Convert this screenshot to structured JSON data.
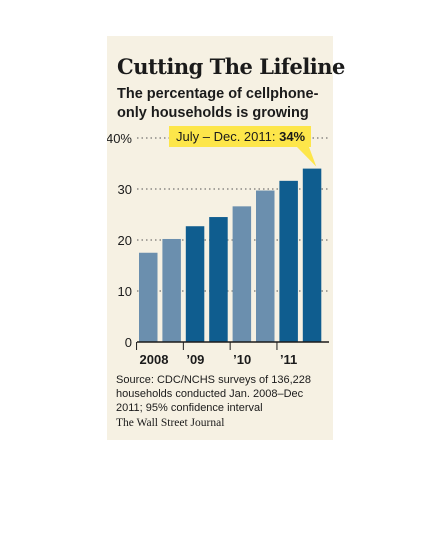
{
  "title": "Cutting The Lifeline",
  "subtitle": "The percentage of cellphone-only households is growing",
  "source": "Source: CDC/NCHS surveys of 136,228 households conducted Jan. 2008–Dec 2011; 95% confidence interval",
  "credit": "The Wall Street Journal",
  "colors": {
    "light_bar": "#6b8fae",
    "dark_bar": "#0f5d8f",
    "callout": "#fde64a",
    "background": "#f6f1e3"
  },
  "chart_data": {
    "type": "bar",
    "x": [
      "2008 H1",
      "2008 H2",
      "2009 H1",
      "2009 H2",
      "2010 H1",
      "2010 H2",
      "2011 H1",
      "2011 H2"
    ],
    "values": [
      17.5,
      20.2,
      22.7,
      24.5,
      26.6,
      29.7,
      31.6,
      34
    ],
    "bar_shade": [
      "light",
      "light",
      "dark",
      "dark",
      "light",
      "light",
      "dark",
      "dark"
    ],
    "category_labels": [
      "2008",
      "’09",
      "’10",
      "’11"
    ],
    "y_ticks": [
      {
        "value": 0,
        "label": "0"
      },
      {
        "value": 10,
        "label": "10"
      },
      {
        "value": 20,
        "label": "20"
      },
      {
        "value": 30,
        "label": "30"
      },
      {
        "value": 40,
        "label": "40%"
      }
    ],
    "ylim": [
      0,
      40
    ],
    "grid": "dotted horizontal",
    "callout": {
      "prefix": "July – Dec. 2011: ",
      "value": "34%"
    }
  }
}
